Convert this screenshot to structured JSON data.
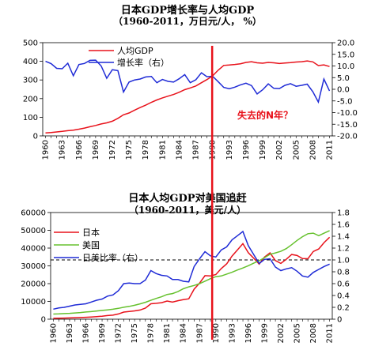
{
  "chart_data": [
    {
      "type": "line",
      "title": "日本GDP增长率与人均GDP",
      "subtitle": "（1960-2011，万日元/人，  %）",
      "x": [
        1960,
        1961,
        1962,
        1963,
        1964,
        1965,
        1966,
        1967,
        1968,
        1969,
        1970,
        1971,
        1972,
        1973,
        1974,
        1975,
        1976,
        1977,
        1978,
        1979,
        1980,
        1981,
        1982,
        1983,
        1984,
        1985,
        1986,
        1987,
        1988,
        1989,
        1990,
        1991,
        1992,
        1993,
        1994,
        1995,
        1996,
        1997,
        1998,
        1999,
        2000,
        2001,
        2002,
        2003,
        2004,
        2005,
        2006,
        2007,
        2008,
        2009,
        2010,
        2011
      ],
      "x_tick_labels": [
        "1960",
        "1963",
        "1966",
        "1969",
        "1972",
        "1975",
        "1978",
        "1981",
        "1984",
        "1987",
        "1990",
        "1993",
        "1996",
        "1999",
        "2002",
        "2005",
        "2008",
        "2011"
      ],
      "ylim_left": [
        0,
        500
      ],
      "y_ticks_left": [
        "0",
        "100",
        "200",
        "300",
        "400",
        "500"
      ],
      "ylim_right": [
        -20,
        20
      ],
      "y_ticks_right": [
        "-20.0",
        "-15.0",
        "-10.0",
        "-5.0",
        "0.0",
        "5.0",
        "10.0",
        "15.0",
        "20.0"
      ],
      "legend_placement": "top-left",
      "series": [
        {
          "name": "人均GDP",
          "axis": "left",
          "color": "#e8121b",
          "values": [
            16,
            18,
            21,
            24,
            28,
            31,
            36,
            42,
            49,
            56,
            64,
            70,
            79,
            94,
            113,
            123,
            138,
            152,
            165,
            180,
            193,
            204,
            213,
            222,
            234,
            248,
            257,
            268,
            285,
            302,
            322,
            352,
            378,
            380,
            383,
            387,
            394,
            398,
            392,
            390,
            394,
            392,
            388,
            391,
            393,
            396,
            398,
            402,
            397,
            377,
            381,
            372
          ]
        },
        {
          "name": "增长率（右）",
          "axis": "right",
          "color": "#1f2bd6",
          "values": [
            12.0,
            11.0,
            9.0,
            8.8,
            11.2,
            5.8,
            10.6,
            11.1,
            12.4,
            12.5,
            10.0,
            4.7,
            8.4,
            8.0,
            -1.2,
            3.1,
            4.0,
            4.4,
            5.3,
            5.5,
            2.8,
            4.2,
            3.4,
            3.1,
            4.5,
            6.3,
            2.8,
            4.1,
            7.1,
            5.4,
            5.6,
            3.3,
            0.8,
            0.2,
            0.9,
            1.9,
            2.6,
            1.6,
            -2.0,
            -0.2,
            2.3,
            0.4,
            0.3,
            1.7,
            2.4,
            1.3,
            1.7,
            2.2,
            -1.0,
            -5.5,
            4.4,
            -0.7
          ]
        }
      ],
      "annotation": "失去的N年？"
    },
    {
      "type": "line",
      "title": "日本人均GDP对美国追赶",
      "subtitle": "（1960-2011，美元/人）",
      "x": [
        1960,
        1961,
        1962,
        1963,
        1964,
        1965,
        1966,
        1967,
        1968,
        1969,
        1970,
        1971,
        1972,
        1973,
        1974,
        1975,
        1976,
        1977,
        1978,
        1979,
        1980,
        1981,
        1982,
        1983,
        1984,
        1985,
        1986,
        1987,
        1988,
        1989,
        1990,
        1991,
        1992,
        1993,
        1994,
        1995,
        1996,
        1997,
        1998,
        1999,
        2000,
        2001,
        2002,
        2003,
        2004,
        2005,
        2006,
        2007,
        2008,
        2009,
        2010,
        2011
      ],
      "x_tick_labels": [
        "1960",
        "1963",
        "1966",
        "1969",
        "1972",
        "1975",
        "1978",
        "1981",
        "1984",
        "1987",
        "1990",
        "1993",
        "1996",
        "1999",
        "2002",
        "2005",
        "2008",
        "2011"
      ],
      "ylim_left": [
        0,
        60000
      ],
      "y_ticks_left": [
        "0",
        "10000",
        "20000",
        "30000",
        "40000",
        "50000",
        "60000"
      ],
      "ylim_right": [
        0,
        1.8
      ],
      "y_ticks_right": [
        "0",
        "0.2",
        "0.4",
        "0.6",
        "0.8",
        "1.0",
        "1.2",
        "1.4",
        "1.6",
        "1.8"
      ],
      "reference_line": 1.0,
      "legend_placement": "top-left",
      "series": [
        {
          "name": "日本",
          "axis": "left",
          "color": "#e8121b",
          "values": [
            480,
            560,
            640,
            720,
            840,
            920,
            1060,
            1230,
            1450,
            1670,
            2040,
            2270,
            2920,
            3990,
            4360,
            4660,
            5160,
            6230,
            8650,
            8950,
            9310,
            10210,
            9580,
            10420,
            10980,
            11470,
            16890,
            20300,
            24500,
            24300,
            25100,
            28500,
            31100,
            35500,
            39000,
            42500,
            37400,
            34300,
            31000,
            35000,
            37300,
            33000,
            31400,
            33700,
            36400,
            35800,
            34100,
            34000,
            38100,
            39500,
            43100,
            46100
          ]
        },
        {
          "name": "美国",
          "axis": "left",
          "color": "#66c12e",
          "values": [
            2900,
            3000,
            3150,
            3300,
            3500,
            3750,
            4050,
            4250,
            4600,
            4950,
            5250,
            5600,
            6100,
            6700,
            7200,
            7800,
            8600,
            9500,
            10600,
            11700,
            12600,
            13900,
            14400,
            15500,
            17100,
            18200,
            19000,
            20000,
            21400,
            22800,
            23900,
            24300,
            25400,
            26400,
            27700,
            28800,
            30100,
            31500,
            32900,
            34600,
            36500,
            37300,
            38200,
            39700,
            41900,
            44300,
            46400,
            48100,
            48400,
            47000,
            48400,
            49800
          ]
        },
        {
          "name": "日美比率（右）",
          "axis": "right",
          "color": "#1f2bd6",
          "values": [
            0.17,
            0.19,
            0.2,
            0.22,
            0.24,
            0.25,
            0.26,
            0.29,
            0.32,
            0.34,
            0.39,
            0.41,
            0.48,
            0.6,
            0.61,
            0.6,
            0.6,
            0.66,
            0.82,
            0.77,
            0.74,
            0.73,
            0.67,
            0.67,
            0.64,
            0.63,
            0.89,
            1.02,
            1.14,
            1.07,
            1.05,
            1.17,
            1.22,
            1.34,
            1.41,
            1.48,
            1.24,
            1.09,
            0.94,
            1.01,
            1.02,
            0.88,
            0.82,
            0.85,
            0.87,
            0.81,
            0.73,
            0.71,
            0.79,
            0.84,
            0.89,
            0.93
          ]
        }
      ]
    }
  ]
}
